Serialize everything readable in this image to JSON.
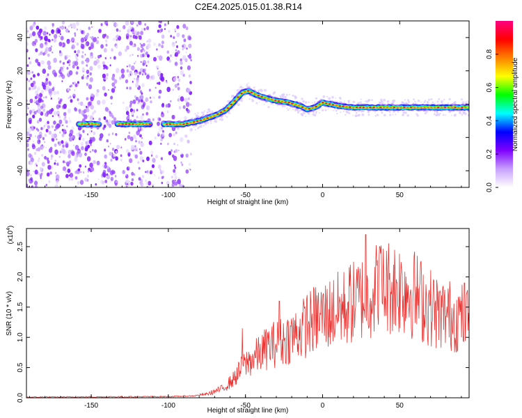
{
  "chart_data": [
    {
      "type": "heatmap",
      "title": "C2E4.2025.015.01.38.R14",
      "xlabel": "Height of straight line (km)",
      "ylabel": "Frequency (Hz)",
      "xlim": [
        -192,
        95
      ],
      "ylim": [
        -50,
        50
      ],
      "xticks": [
        "-150",
        "-100",
        "-50",
        "0",
        "50"
      ],
      "yticks": [
        "-40",
        "-20",
        "0",
        "20",
        "40"
      ],
      "colorbar": {
        "label": "Normalized spectral amplitude",
        "range": [
          0,
          1
        ],
        "ticks": [
          "0.0",
          "0.2",
          "0.4",
          "0.6",
          "0.8"
        ],
        "colormap": [
          "#ffffff",
          "#c8a0ff",
          "#7f00ff",
          "#0000ff",
          "#00ffff",
          "#00ff00",
          "#ffff00",
          "#ff8000",
          "#ff0000",
          "#ff0080"
        ]
      },
      "ridge": {
        "x": [
          -158,
          -150,
          -145,
          -130,
          -120,
          -115,
          -100,
          -90,
          -80,
          -70,
          -62,
          -57,
          -52,
          -48,
          -44,
          -38,
          -30,
          -22,
          -15,
          -10,
          -5,
          0,
          10,
          20,
          40,
          60,
          80,
          95
        ],
        "y": [
          -12,
          -12,
          -12,
          -12,
          -12,
          -12,
          -12,
          -12,
          -10,
          -7,
          -3,
          2,
          7,
          8,
          6,
          4,
          2,
          1,
          -1,
          -3,
          -2,
          1,
          -1,
          -2,
          -2,
          -2,
          -2,
          -2
        ]
      },
      "noise_region_x": [
        -192,
        -85
      ]
    },
    {
      "type": "line",
      "title": "",
      "xlabel": "Height of straight line (km)",
      "ylabel": "SNR (10 * v/v)",
      "exponent_label": "(x10",
      "exponent_power": "4",
      "exponent_close": ")",
      "xlim": [
        -192,
        95
      ],
      "ylim": [
        0,
        2.8
      ],
      "xticks": [
        "-150",
        "-100",
        "-50",
        "0",
        "50"
      ],
      "yticks": [
        "0.0",
        "0.5",
        "1.0",
        "1.5",
        "2.0",
        "2.5"
      ],
      "color": "#e8302e",
      "envelope": {
        "x": [
          -192,
          -100,
          -85,
          -75,
          -65,
          -58,
          -52,
          -48,
          -42,
          -35,
          -25,
          -15,
          -5,
          5,
          15,
          25,
          35,
          45,
          55,
          65,
          75,
          85,
          95
        ],
        "y": [
          0.01,
          0.02,
          0.03,
          0.06,
          0.15,
          0.3,
          0.5,
          0.6,
          0.7,
          0.85,
          0.95,
          1.1,
          1.3,
          1.4,
          1.5,
          1.65,
          1.8,
          1.85,
          1.8,
          1.6,
          1.4,
          1.35,
          1.3
        ]
      },
      "peaks": [
        {
          "x": -52,
          "y": 1.15
        },
        {
          "x": -28,
          "y": 1.6
        },
        {
          "x": -10,
          "y": 1.7
        },
        {
          "x": 18,
          "y": 2.2
        },
        {
          "x": 28,
          "y": 2.7
        },
        {
          "x": 37,
          "y": 2.5
        },
        {
          "x": 92,
          "y": 1.9
        }
      ]
    }
  ]
}
